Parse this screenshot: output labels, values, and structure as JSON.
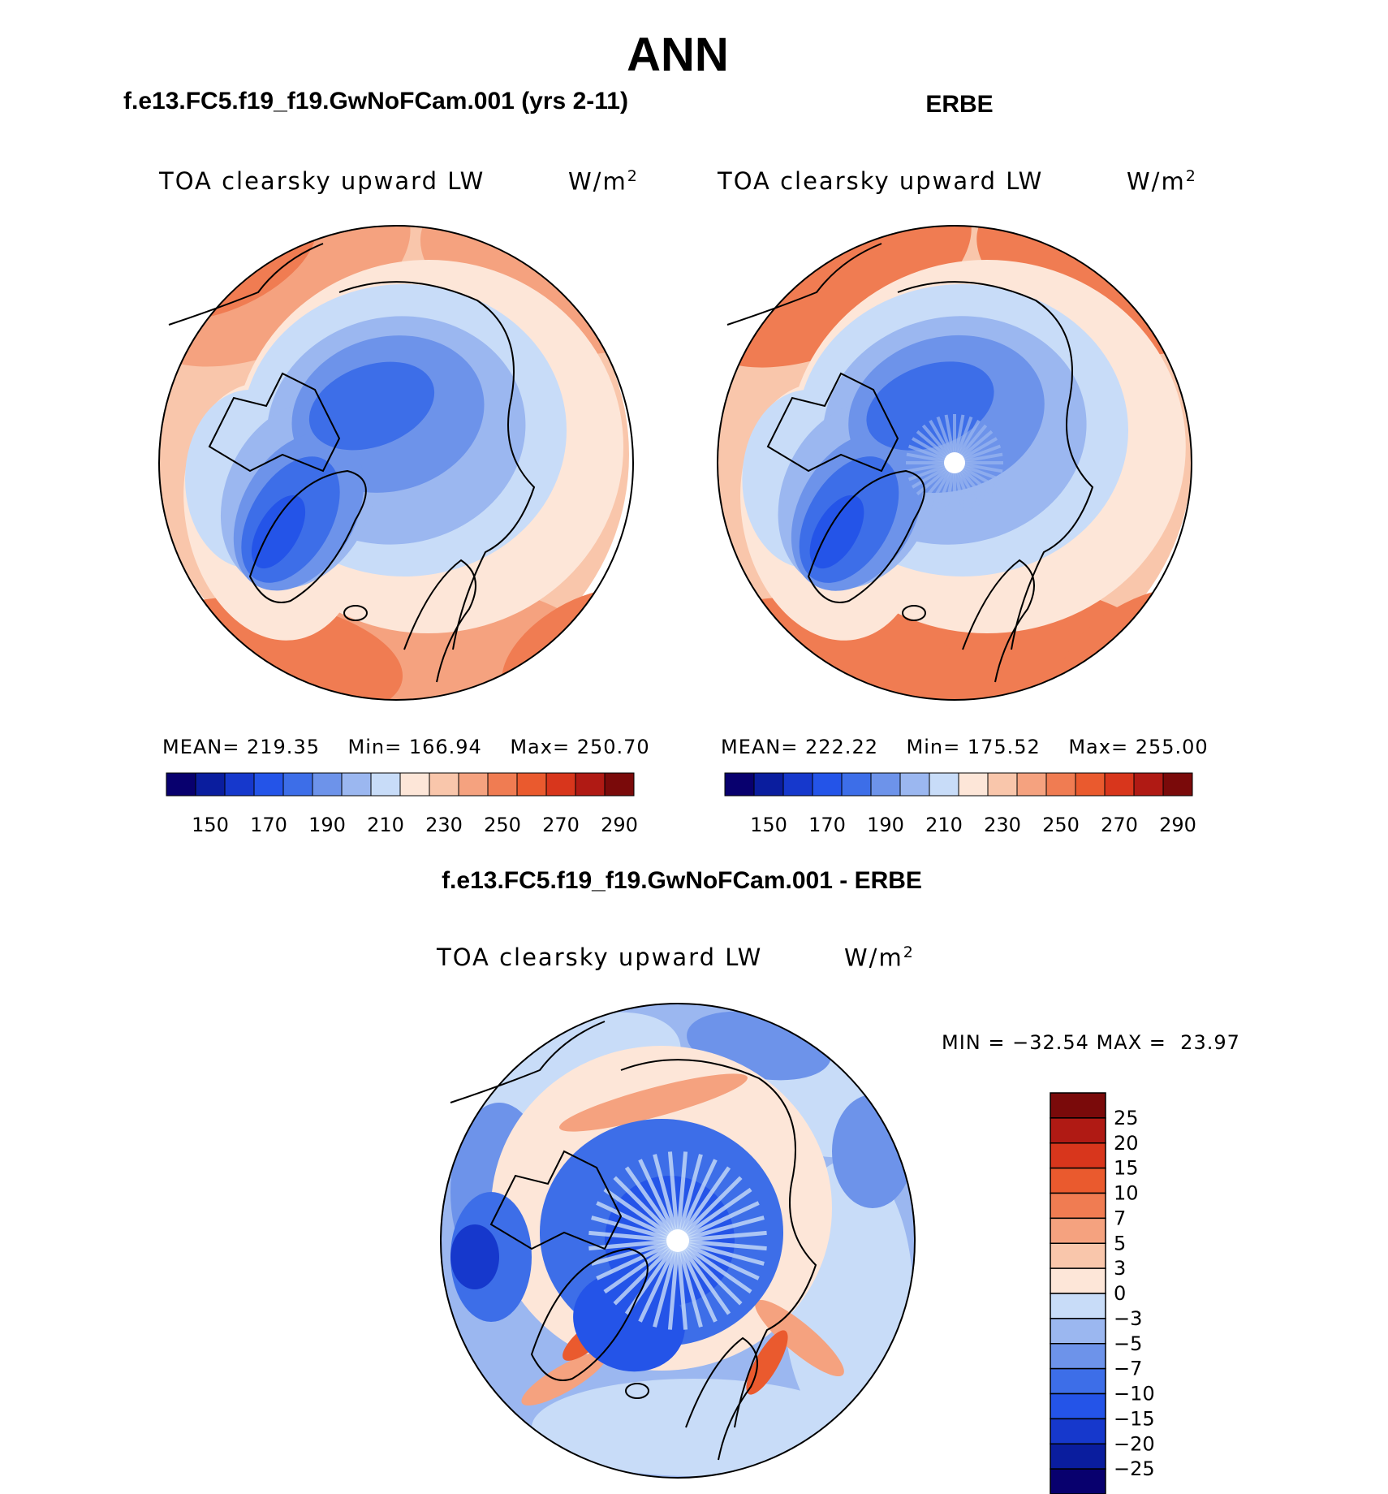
{
  "figure": {
    "title": "ANN"
  },
  "colors": {
    "abs_scale": [
      "#08006e",
      "#0a1d9e",
      "#1638cc",
      "#2454e8",
      "#3d6ee8",
      "#6d93ea",
      "#9bb7f0",
      "#c8dcf8",
      "#fde6d8",
      "#f9c6ab",
      "#f5a27f",
      "#f07c52",
      "#ea5a2e",
      "#d8361c",
      "#b01a14",
      "#7a0a0a"
    ],
    "diff_scale": [
      "#08006e",
      "#0a1d9e",
      "#1638cc",
      "#2454e8",
      "#3d6ee8",
      "#6d93ea",
      "#9bb7f0",
      "#c8dcf8",
      "#fde6d8",
      "#f9c6ab",
      "#f5a27f",
      "#f07c52",
      "#ea5a2e",
      "#d8361c",
      "#b01a14",
      "#7a0a0a"
    ]
  },
  "chart_data": [
    {
      "type": "heatmap",
      "projection": "north-polar-stereographic",
      "title": "f.e13.FC5.f19_f19.GwNoFCam.001 (yrs 2-11)",
      "variable": "TOA clearsky upward LW",
      "units": "W/m",
      "units_exp": "2",
      "stats": {
        "mean_label": "MEAN=",
        "mean": "219.35",
        "min_label": "Min=",
        "min": "166.94",
        "max_label": "Max=",
        "max": "250.70"
      },
      "colorbar_ticks": [
        "150",
        "170",
        "190",
        "210",
        "230",
        "250",
        "270",
        "290"
      ],
      "colorbar_range": [
        140,
        300
      ]
    },
    {
      "type": "heatmap",
      "projection": "north-polar-stereographic",
      "title": "ERBE",
      "variable": "TOA clearsky upward LW",
      "units": "W/m",
      "units_exp": "2",
      "stats": {
        "mean_label": "MEAN=",
        "mean": "222.22",
        "min_label": "Min=",
        "min": "175.52",
        "max_label": "Max=",
        "max": "255.00"
      },
      "colorbar_ticks": [
        "150",
        "170",
        "190",
        "210",
        "230",
        "250",
        "270",
        "290"
      ],
      "colorbar_range": [
        140,
        300
      ]
    },
    {
      "type": "heatmap",
      "projection": "north-polar-stereographic",
      "title": "f.e13.FC5.f19_f19.GwNoFCam.001 - ERBE",
      "variable": "TOA clearsky upward LW",
      "units": "W/m",
      "units_exp": "2",
      "stats": {
        "min_label": "MIN =",
        "min": "−32.54",
        "max_label": "MAX =",
        "max": "23.97"
      },
      "colorbar_levels": [
        "25",
        "20",
        "15",
        "10",
        "7",
        "5",
        "3",
        "0",
        "−3",
        "−5",
        "−7",
        "−10",
        "−15",
        "−20",
        "−25"
      ]
    }
  ]
}
